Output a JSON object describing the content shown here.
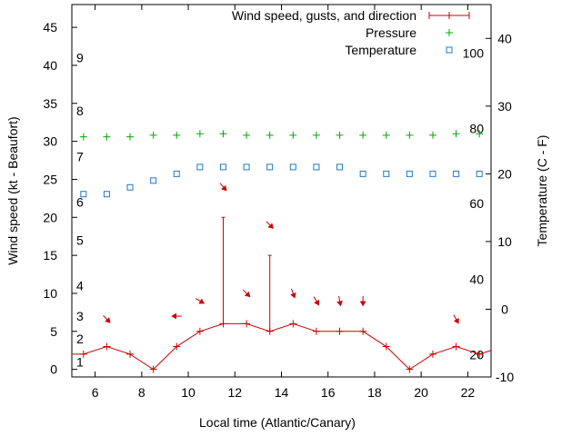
{
  "chart_data": {
    "type": "line",
    "title": "",
    "xlabel": "Local time (Atlantic/Canary)",
    "ylabel": "Wind speed (kt - Beaufort)",
    "y2label": "Temperature (C - F)",
    "xlim": [
      5,
      23
    ],
    "ylim": [
      -1,
      48
    ],
    "y2lim": [
      -10,
      45
    ],
    "x_ticks": [
      6,
      8,
      10,
      12,
      14,
      16,
      18,
      20,
      22
    ],
    "y_ticks": [
      0,
      5,
      10,
      15,
      20,
      25,
      30,
      35,
      40,
      45
    ],
    "y2_ticks": [
      -10,
      0,
      10,
      20,
      30,
      40
    ],
    "beaufort_labels": [
      {
        "label": "1",
        "knots": 1
      },
      {
        "label": "2",
        "knots": 4
      },
      {
        "label": "3",
        "knots": 7
      },
      {
        "label": "4",
        "knots": 11
      },
      {
        "label": "5",
        "knots": 17
      },
      {
        "label": "6",
        "knots": 22
      },
      {
        "label": "7",
        "knots": 28
      },
      {
        "label": "8",
        "knots": 34
      },
      {
        "label": "9",
        "knots": 41
      }
    ],
    "fahrenheit_labels": [
      {
        "label": "20",
        "celsius": -6.7
      },
      {
        "label": "40",
        "celsius": 4.4
      },
      {
        "label": "60",
        "celsius": 15.6
      },
      {
        "label": "80",
        "celsius": 26.7
      },
      {
        "label": "100",
        "celsius": 37.8
      }
    ],
    "legend": [
      {
        "name": "Wind speed, gusts, and direction",
        "color": "#cc0000",
        "marker": "plus-line"
      },
      {
        "name": "Pressure",
        "color": "#00aa00",
        "marker": "plus"
      },
      {
        "name": "Temperature",
        "color": "#1f78c8",
        "marker": "square"
      }
    ],
    "legend_position": "top-right",
    "series": [
      {
        "name": "Wind speed",
        "x": [
          5,
          5.5,
          6.5,
          7.5,
          8.5,
          9.5,
          10.5,
          11.5,
          12.5,
          13.5,
          14.5,
          15.5,
          16.5,
          17.5,
          18.5,
          19.5,
          20.5,
          21.5,
          22.5,
          23
        ],
        "values": [
          2,
          2,
          3,
          2,
          0,
          3,
          5,
          6,
          6,
          5,
          6,
          5,
          5,
          5,
          3,
          0,
          2,
          3,
          2,
          2.5
        ]
      },
      {
        "name": "Gusts",
        "x": [
          11.5,
          13.5
        ],
        "values": [
          20,
          15
        ]
      },
      {
        "name": "Wind direction (deg from north)",
        "x": [
          6.5,
          9.5,
          10.5,
          11.5,
          12.5,
          13.5,
          14.5,
          15.5,
          16.5,
          17.5,
          21.5
        ],
        "values": [
          315,
          90,
          300,
          320,
          315,
          315,
          340,
          330,
          350,
          0,
          330
        ],
        "arrow_knots": [
          6.6,
          7.0,
          9.0,
          24.0,
          10.0,
          19.0,
          10.0,
          9.0,
          9.0,
          9.0,
          6.6
        ]
      },
      {
        "name": "Pressure",
        "x": [
          5.5,
          6.5,
          7.5,
          8.5,
          9.5,
          10.5,
          11.5,
          12.5,
          13.5,
          14.5,
          15.5,
          16.5,
          17.5,
          18.5,
          19.5,
          20.5,
          21.5,
          22.5
        ],
        "values": [
          30.6,
          30.6,
          30.6,
          30.8,
          30.8,
          31.0,
          31.0,
          30.8,
          30.8,
          30.8,
          30.8,
          30.8,
          30.8,
          30.8,
          30.8,
          30.8,
          31.0,
          31.0
        ]
      },
      {
        "name": "Temperature",
        "x": [
          5.5,
          6.5,
          7.5,
          8.5,
          9.5,
          10.5,
          11.5,
          12.5,
          13.5,
          14.5,
          15.5,
          16.5,
          17.5,
          18.5,
          19.5,
          20.5,
          21.5,
          22.5
        ],
        "values": [
          17,
          17,
          18,
          19,
          20,
          21,
          21,
          21,
          21,
          21,
          21,
          21,
          20,
          20,
          20,
          20,
          20,
          20
        ]
      }
    ]
  }
}
